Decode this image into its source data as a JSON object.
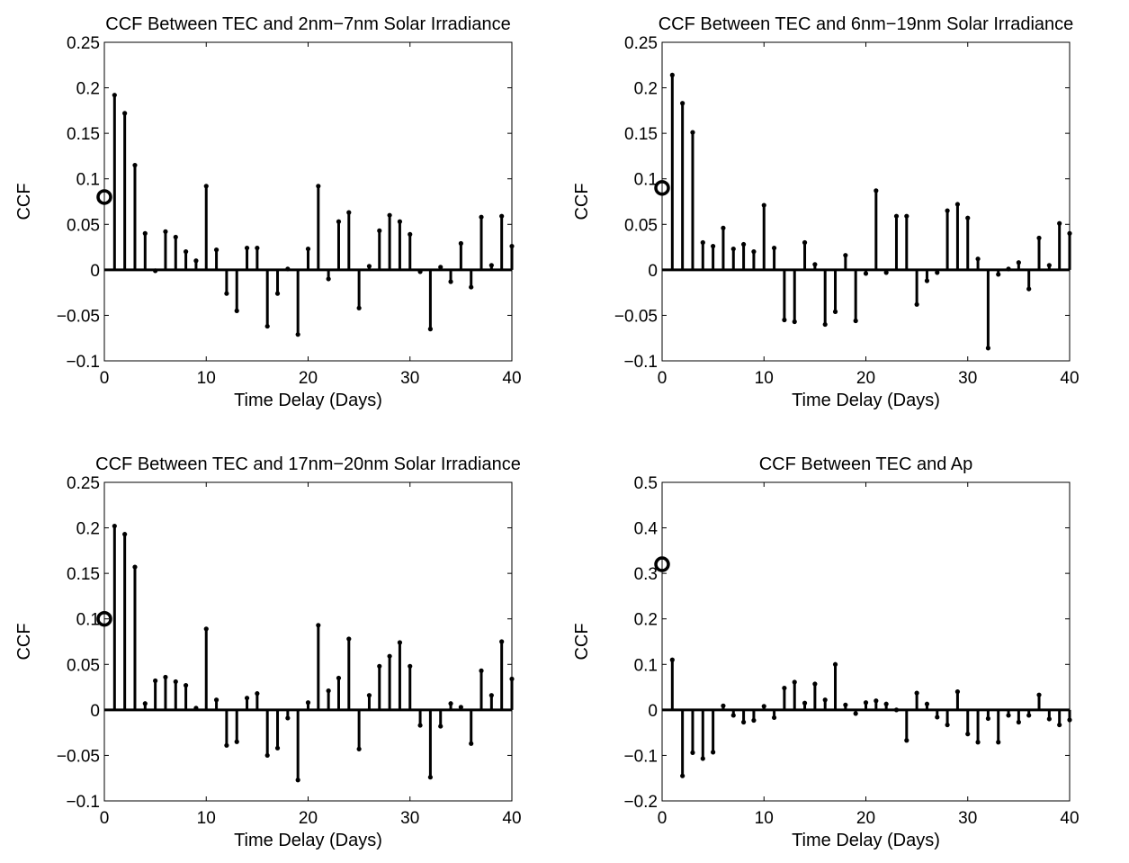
{
  "chart_data": [
    {
      "type": "stem",
      "title": "CCF Between TEC and 2nm−7nm Solar Irradiance",
      "xlabel": "Time Delay (Days)",
      "ylabel": "CCF",
      "xlim": [
        0,
        40
      ],
      "ylim": [
        -0.1,
        0.25
      ],
      "xticks": [
        0,
        10,
        20,
        30,
        40
      ],
      "yticks": [
        -0.1,
        -0.05,
        0,
        0.05,
        0.1,
        0.15,
        0.2,
        0.25
      ],
      "xtick_labels": [
        "0",
        "10",
        "20",
        "30",
        "40"
      ],
      "ytick_labels": [
        "−0.1",
        "−0.05",
        "0",
        "0.05",
        "0.1",
        "0.15",
        "0.2",
        "0.25"
      ],
      "zero_lag_marker": 0.08,
      "x": [
        1,
        2,
        3,
        4,
        5,
        6,
        7,
        8,
        9,
        10,
        11,
        12,
        13,
        14,
        15,
        16,
        17,
        18,
        19,
        20,
        21,
        22,
        23,
        24,
        25,
        26,
        27,
        28,
        29,
        30,
        31,
        32,
        33,
        34,
        35,
        36,
        37,
        38,
        39,
        40
      ],
      "values": [
        0.192,
        0.172,
        0.115,
        0.04,
        -0.001,
        0.042,
        0.036,
        0.02,
        0.01,
        0.092,
        0.022,
        -0.026,
        -0.045,
        0.024,
        0.024,
        -0.062,
        -0.026,
        0.001,
        -0.071,
        0.023,
        0.092,
        -0.01,
        0.053,
        0.063,
        -0.042,
        0.004,
        0.043,
        0.06,
        0.053,
        0.039,
        -0.002,
        -0.065,
        0.003,
        -0.013,
        0.029,
        -0.019,
        0.058,
        0.005,
        0.059,
        0.026
      ]
    },
    {
      "type": "stem",
      "title": "CCF Between TEC and 6nm−19nm Solar Irradiance",
      "xlabel": "Time Delay (Days)",
      "ylabel": "CCF",
      "xlim": [
        0,
        40
      ],
      "ylim": [
        -0.1,
        0.25
      ],
      "xticks": [
        0,
        10,
        20,
        30,
        40
      ],
      "yticks": [
        -0.1,
        -0.05,
        0,
        0.05,
        0.1,
        0.15,
        0.2,
        0.25
      ],
      "xtick_labels": [
        "0",
        "10",
        "20",
        "30",
        "40"
      ],
      "ytick_labels": [
        "−0.1",
        "−0.05",
        "0",
        "0.05",
        "0.1",
        "0.15",
        "0.2",
        "0.25"
      ],
      "zero_lag_marker": 0.09,
      "x": [
        1,
        2,
        3,
        4,
        5,
        6,
        7,
        8,
        9,
        10,
        11,
        12,
        13,
        14,
        15,
        16,
        17,
        18,
        19,
        20,
        21,
        22,
        23,
        24,
        25,
        26,
        27,
        28,
        29,
        30,
        31,
        32,
        33,
        34,
        35,
        36,
        37,
        38,
        39,
        40
      ],
      "values": [
        0.214,
        0.183,
        0.151,
        0.03,
        0.026,
        0.046,
        0.023,
        0.028,
        0.02,
        0.071,
        0.024,
        -0.055,
        -0.057,
        0.03,
        0.006,
        -0.06,
        -0.046,
        0.016,
        -0.056,
        -0.004,
        0.087,
        -0.003,
        0.059,
        0.059,
        -0.038,
        -0.012,
        -0.003,
        0.065,
        0.072,
        0.057,
        0.012,
        -0.086,
        -0.005,
        0.001,
        0.008,
        -0.021,
        0.035,
        0.005,
        0.051,
        0.04
      ]
    },
    {
      "type": "stem",
      "title": "CCF Between TEC and 17nm−20nm Solar Irradiance",
      "xlabel": "Time Delay (Days)",
      "ylabel": "CCF",
      "xlim": [
        0,
        40
      ],
      "ylim": [
        -0.1,
        0.25
      ],
      "xticks": [
        0,
        10,
        20,
        30,
        40
      ],
      "yticks": [
        -0.1,
        -0.05,
        0,
        0.05,
        0.1,
        0.15,
        0.2,
        0.25
      ],
      "xtick_labels": [
        "0",
        "10",
        "20",
        "30",
        "40"
      ],
      "ytick_labels": [
        "−0.1",
        "−0.05",
        "0",
        "0.05",
        "0.1",
        "0.15",
        "0.2",
        "0.25"
      ],
      "zero_lag_marker": 0.1,
      "x": [
        1,
        2,
        3,
        4,
        5,
        6,
        7,
        8,
        9,
        10,
        11,
        12,
        13,
        14,
        15,
        16,
        17,
        18,
        19,
        20,
        21,
        22,
        23,
        24,
        25,
        26,
        27,
        28,
        29,
        30,
        31,
        32,
        33,
        34,
        35,
        36,
        37,
        38,
        39,
        40
      ],
      "values": [
        0.202,
        0.193,
        0.157,
        0.007,
        0.032,
        0.036,
        0.031,
        0.027,
        0.002,
        0.089,
        0.011,
        -0.039,
        -0.035,
        0.013,
        0.018,
        -0.05,
        -0.042,
        -0.009,
        -0.077,
        0.008,
        0.093,
        0.021,
        0.035,
        0.078,
        -0.043,
        0.016,
        0.048,
        0.059,
        0.074,
        0.048,
        -0.017,
        -0.074,
        -0.018,
        0.007,
        0.003,
        -0.037,
        0.043,
        0.016,
        0.075,
        0.034
      ]
    },
    {
      "type": "stem",
      "title": "CCF Between TEC and Ap",
      "xlabel": "Time Delay (Days)",
      "ylabel": "CCF",
      "xlim": [
        0,
        40
      ],
      "ylim": [
        -0.2,
        0.5
      ],
      "xticks": [
        0,
        10,
        20,
        30,
        40
      ],
      "yticks": [
        -0.2,
        -0.1,
        0,
        0.1,
        0.2,
        0.3,
        0.4,
        0.5
      ],
      "xtick_labels": [
        "0",
        "10",
        "20",
        "30",
        "40"
      ],
      "ytick_labels": [
        "−0.2",
        "−0.1",
        "0",
        "0.1",
        "0.2",
        "0.3",
        "0.4",
        "0.5"
      ],
      "zero_lag_marker": 0.32,
      "x": [
        1,
        2,
        3,
        4,
        5,
        6,
        7,
        8,
        9,
        10,
        11,
        12,
        13,
        14,
        15,
        16,
        17,
        18,
        19,
        20,
        21,
        22,
        23,
        24,
        25,
        26,
        27,
        28,
        29,
        30,
        31,
        32,
        33,
        34,
        35,
        36,
        37,
        38,
        39,
        40
      ],
      "values": [
        0.11,
        -0.145,
        -0.094,
        -0.107,
        -0.093,
        0.009,
        -0.012,
        -0.027,
        -0.023,
        0.008,
        -0.017,
        0.048,
        0.061,
        0.015,
        0.057,
        0.022,
        0.1,
        0.011,
        -0.008,
        0.016,
        0.02,
        0.013,
        0.0,
        -0.067,
        0.037,
        0.013,
        -0.016,
        -0.033,
        0.04,
        -0.053,
        -0.071,
        -0.019,
        -0.071,
        -0.012,
        -0.027,
        -0.012,
        0.033,
        -0.02,
        -0.033,
        -0.022
      ]
    }
  ]
}
